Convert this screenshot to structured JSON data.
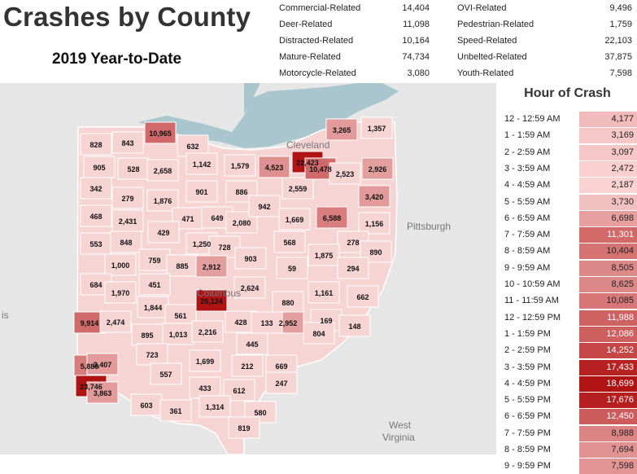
{
  "title": "Crashes by County",
  "subtitle": "2019 Year-to-Date",
  "stats": [
    {
      "label": "Commercial-Related",
      "value": "14,404"
    },
    {
      "label": "Deer-Related",
      "value": "11,098"
    },
    {
      "label": "Distracted-Related",
      "value": "10,164"
    },
    {
      "label": "Mature-Related",
      "value": "74,734"
    },
    {
      "label": "Motorcycle-Related",
      "value": "3,080"
    },
    {
      "label": "OVI-Related",
      "value": "9,496"
    },
    {
      "label": "Pedestrian-Related",
      "value": "1,759"
    },
    {
      "label": "Speed-Related",
      "value": "22,103"
    },
    {
      "label": "Unbelted-Related",
      "value": "37,875"
    },
    {
      "label": "Youth-Related",
      "value": "7,598"
    }
  ],
  "hour_panel": {
    "title": "Hour of Crash",
    "rows": [
      {
        "label": "12 - 12:59 AM",
        "value": "4,177",
        "n": 4177
      },
      {
        "label": "1 - 1:59 AM",
        "value": "3,169",
        "n": 3169
      },
      {
        "label": "2 - 2:59 AM",
        "value": "3,097",
        "n": 3097
      },
      {
        "label": "3 - 3:59 AM",
        "value": "2,472",
        "n": 2472
      },
      {
        "label": "4 - 4:59 AM",
        "value": "2,187",
        "n": 2187
      },
      {
        "label": "5 - 5:59 AM",
        "value": "3,730",
        "n": 3730
      },
      {
        "label": "6 - 6:59 AM",
        "value": "6,698",
        "n": 6698
      },
      {
        "label": "7 - 7:59 AM",
        "value": "11,301",
        "n": 11301
      },
      {
        "label": "8 - 8:59 AM",
        "value": "10,404",
        "n": 10404
      },
      {
        "label": "9 - 9:59 AM",
        "value": "8,505",
        "n": 8505
      },
      {
        "label": "10 - 10:59 AM",
        "value": "8,625",
        "n": 8625
      },
      {
        "label": "11 - 11:59 AM",
        "value": "10,085",
        "n": 10085
      },
      {
        "label": "12 - 12:59 PM",
        "value": "11,988",
        "n": 11988
      },
      {
        "label": "1 - 1:59 PM",
        "value": "12,086",
        "n": 12086
      },
      {
        "label": "2 - 2:59 PM",
        "value": "14,252",
        "n": 14252
      },
      {
        "label": "3 - 3:59 PM",
        "value": "17,433",
        "n": 17433
      },
      {
        "label": "4 - 4:59 PM",
        "value": "18,699",
        "n": 18699
      },
      {
        "label": "5 - 5:59 PM",
        "value": "17,676",
        "n": 17676
      },
      {
        "label": "6 - 6:59 PM",
        "value": "12,450",
        "n": 12450
      },
      {
        "label": "7 - 7:59 PM",
        "value": "8,988",
        "n": 8988
      },
      {
        "label": "8 - 8:59 PM",
        "value": "7,694",
        "n": 7694
      },
      {
        "label": "9 - 9:59 PM",
        "value": "7,598",
        "n": 7598
      }
    ]
  },
  "map": {
    "places": [
      "Cleveland",
      "Pittsburgh",
      "Columbus",
      "West",
      "Virginia",
      "is"
    ],
    "colors": {
      "water": "#a9c6cf",
      "land": "#e6e6e6",
      "low": "#f7d4d4",
      "high": "#b01313"
    },
    "counties": [
      "828",
      "843",
      "10,965",
      "632",
      "905",
      "528",
      "2,658",
      "1,142",
      "1,579",
      "4,523",
      "22,423",
      "3,265",
      "1,357",
      "342",
      "279",
      "1,876",
      "901",
      "886",
      "2,559",
      "10,478",
      "2,523",
      "2,926",
      "468",
      "2,431",
      "471",
      "649",
      "2,080",
      "942",
      "1,669",
      "6,588",
      "3,420",
      "1,156",
      "553",
      "848",
      "429",
      "1,250",
      "728",
      "568",
      "278",
      "890",
      "1,000",
      "759",
      "885",
      "2,912",
      "903",
      "59",
      "1,875",
      "294",
      "684",
      "1,970",
      "451",
      "26,124",
      "2,624",
      "880",
      "1,161",
      "662",
      "9,914",
      "2,474",
      "1,844",
      "2,952",
      "895",
      "561",
      "1,013",
      "2,216",
      "428",
      "133",
      "169",
      "148",
      "804",
      "5,880",
      "3,407",
      "723",
      "445",
      "1,699",
      "212",
      "669",
      "23,746",
      "557",
      "247",
      "3,863",
      "433",
      "612",
      "603",
      "361",
      "1,314",
      "580",
      "819"
    ]
  }
}
